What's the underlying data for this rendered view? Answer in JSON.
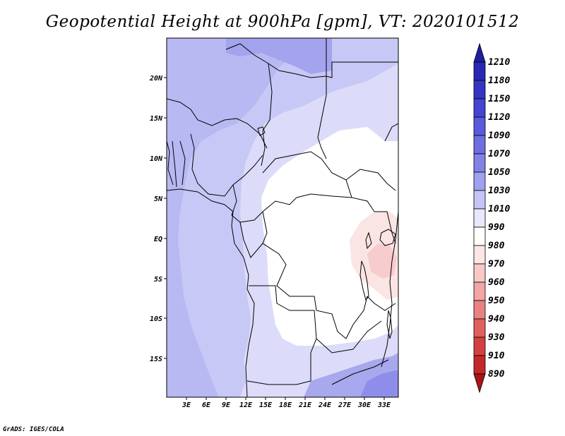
{
  "title": "Geopotential Height at 900hPa [gpm], VT: 2020101512",
  "credit": "GrADS: IGES/COLA",
  "map": {
    "lat_labels": [
      "20N",
      "15N",
      "10N",
      "5N",
      "EQ",
      "5S",
      "10S",
      "15S"
    ],
    "lon_labels": [
      "3E",
      "6E",
      "9E",
      "12E",
      "15E",
      "18E",
      "21E",
      "24E",
      "27E",
      "30E",
      "33E"
    ]
  },
  "colorbar": {
    "levels": [
      "1210",
      "1180",
      "1150",
      "1120",
      "1090",
      "1070",
      "1050",
      "1030",
      "1010",
      "990",
      "980",
      "970",
      "960",
      "950",
      "940",
      "930",
      "910",
      "890"
    ],
    "colors": [
      "#1e1ea0",
      "#2828b4",
      "#3535c4",
      "#4545d2",
      "#5a5adc",
      "#6e6ee2",
      "#8282e6",
      "#a0a0ee",
      "#c4c4f6",
      "#e8e8fc",
      "#ffffff",
      "#fde6e6",
      "#f8c8c8",
      "#f2a6a6",
      "#ea8282",
      "#e06060",
      "#d44040",
      "#c42828",
      "#aa1414"
    ]
  },
  "legend_colors": {
    "outline": "#000000",
    "ocean": "#b5b5f0",
    "low": "#f4c8c8"
  }
}
